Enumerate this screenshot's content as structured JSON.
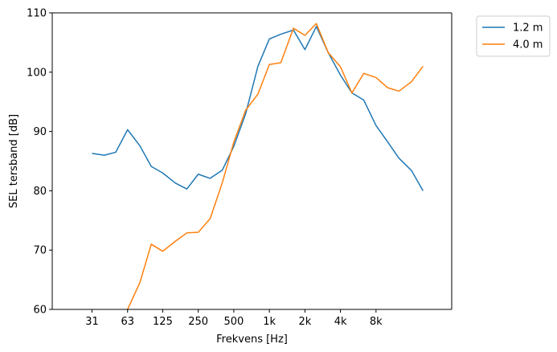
{
  "chart_data": {
    "type": "line",
    "xlabel": "Frekvens [Hz]",
    "ylabel": "SEL tersband [dB]",
    "x_scale": "log",
    "x_ticks": [
      31.5,
      63,
      125,
      250,
      500,
      1000,
      2000,
      4000,
      8000
    ],
    "x_tick_labels": [
      "31",
      "63",
      "125",
      "250",
      "500",
      "1k",
      "2k",
      "4k",
      "8k"
    ],
    "y_ticks": [
      60,
      70,
      80,
      90,
      100,
      110
    ],
    "ylim": [
      60,
      110
    ],
    "xlim": [
      14.5,
      35000
    ],
    "legend_position": "outside-top-right",
    "grid": false,
    "x": [
      16,
      20,
      25,
      31.5,
      40,
      50,
      63,
      80,
      100,
      125,
      160,
      200,
      250,
      315,
      400,
      500,
      630,
      800,
      1000,
      1250,
      1600,
      2000,
      2500,
      3150,
      4000,
      5000,
      6300,
      8000,
      10000,
      12500,
      16000,
      20000
    ],
    "series": [
      {
        "name": "1.2 m",
        "color": "#1f77b4",
        "values": [
          null,
          null,
          null,
          86.3,
          86.0,
          86.5,
          90.3,
          87.6,
          84.1,
          83.0,
          81.3,
          80.3,
          82.8,
          82.1,
          83.5,
          87.5,
          93.0,
          101.0,
          105.6,
          106.4,
          107.1,
          103.8,
          107.7,
          103.3,
          99.5,
          96.5,
          95.3,
          91.0,
          88.3,
          85.5,
          83.4,
          80.0
        ]
      },
      {
        "name": "4.0 m",
        "color": "#ff7f0e",
        "values": [
          null,
          null,
          null,
          null,
          null,
          null,
          60.0,
          64.5,
          71.0,
          69.8,
          71.5,
          72.9,
          73.0,
          75.3,
          81.4,
          88.2,
          93.6,
          96.3,
          101.3,
          101.6,
          107.4,
          106.2,
          108.2,
          103.3,
          100.9,
          96.5,
          99.8,
          99.1,
          97.4,
          96.8,
          98.4,
          101.0
        ]
      }
    ]
  }
}
